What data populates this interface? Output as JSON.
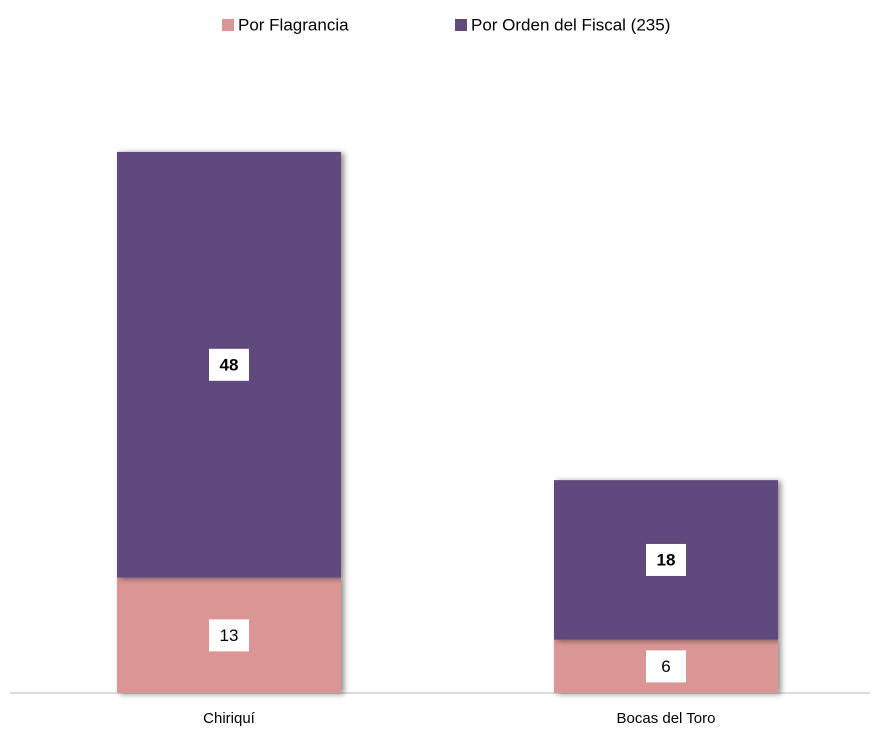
{
  "chart_data": {
    "type": "stacked_bar",
    "categories": [
      "Chiriquí",
      "Bocas del Toro"
    ],
    "series": [
      {
        "name": "Por Flagrancia",
        "color": "#d99694",
        "values": [
          13,
          6
        ]
      },
      {
        "name": "Por Orden del Fiscal (235)",
        "color": "#604a7b",
        "values": [
          48,
          18
        ]
      }
    ]
  }
}
